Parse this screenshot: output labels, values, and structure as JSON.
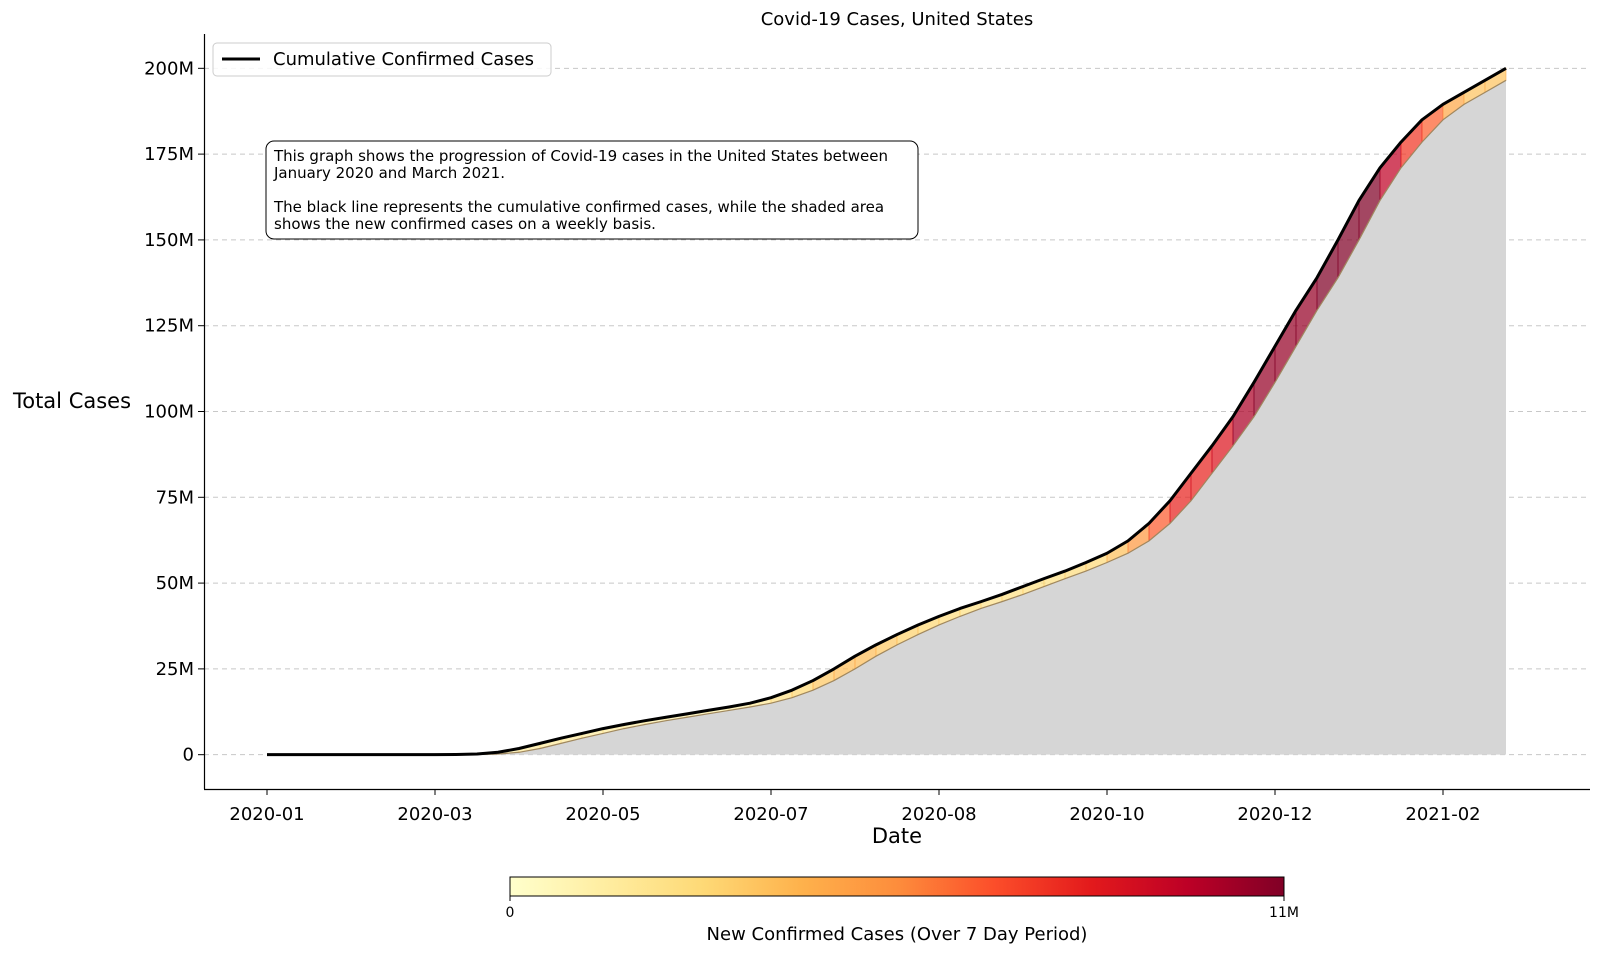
{
  "chart_data": {
    "type": "area",
    "title": "Covid-19 Cases, United States",
    "xlabel": "Date",
    "ylabel": "Total Cases",
    "x_tick_labels": [
      "2020-01",
      "2020-03",
      "2020-05",
      "2020-07",
      "2020-08",
      "2020-10",
      "2020-12",
      "2021-02"
    ],
    "y_tick_labels": [
      "0",
      "25M",
      "50M",
      "75M",
      "100M",
      "125M",
      "150M",
      "175M",
      "200M"
    ],
    "y_ticks": [
      0,
      25000000,
      50000000,
      75000000,
      100000000,
      125000000,
      150000000,
      175000000,
      200000000
    ],
    "ylim": [
      -10000000,
      210000000
    ],
    "x_axis": {
      "start_label": "2020-01",
      "week_index_range": [
        -3,
        63
      ]
    },
    "grid": {
      "y": true,
      "x": false,
      "style": "dashed"
    },
    "legend": {
      "position": "top-left",
      "entries": [
        "Cumulative Confirmed Cases"
      ]
    },
    "annotation": {
      "lines": [
        "This graph shows the progression of Covid-19 cases in the United States between",
        "January 2020 and March 2021.",
        "",
        "The black line represents the cumulative confirmed cases, while the shaded area",
        "shows the new confirmed cases on a weekly basis."
      ]
    },
    "colorbar": {
      "label": "New Confirmed Cases (Over 7 Day Period)",
      "min_label": "0",
      "max_label": "11M",
      "range": [
        0,
        11000000
      ],
      "colormap": "YlOrRd"
    },
    "series": [
      {
        "name": "Cumulative Confirmed Cases",
        "x_week_index": [
          0,
          1,
          2,
          3,
          4,
          5,
          6,
          7,
          8,
          9,
          10,
          11,
          12,
          13,
          14,
          15,
          16,
          17,
          18,
          19,
          20,
          21,
          22,
          23,
          24,
          25,
          26,
          27,
          28,
          29,
          30,
          31,
          32,
          33,
          34,
          35,
          36,
          37,
          38,
          39,
          40,
          41,
          42,
          43,
          44,
          45,
          46,
          47,
          48,
          49,
          50,
          51,
          52,
          53,
          54,
          55,
          56,
          57,
          58,
          59
        ],
        "values": [
          0,
          0,
          0,
          0,
          0,
          0,
          0,
          0,
          0,
          50000,
          200000,
          700000,
          1800000,
          3300000,
          4800000,
          6200000,
          7600000,
          8800000,
          9900000,
          10900000,
          11900000,
          12900000,
          13900000,
          15000000,
          16600000,
          18800000,
          21600000,
          25000000,
          28700000,
          32000000,
          35000000,
          37800000,
          40300000,
          42600000,
          44600000,
          46700000,
          49000000,
          51300000,
          53500000,
          56000000,
          58700000,
          62300000,
          67400000,
          74000000,
          82000000,
          90000000,
          98500000,
          108500000,
          119000000,
          129500000,
          139000000,
          150000000,
          161500000,
          171000000,
          178500000,
          185000000,
          189500000,
          193000000,
          196500000,
          200000000
        ]
      }
    ]
  }
}
